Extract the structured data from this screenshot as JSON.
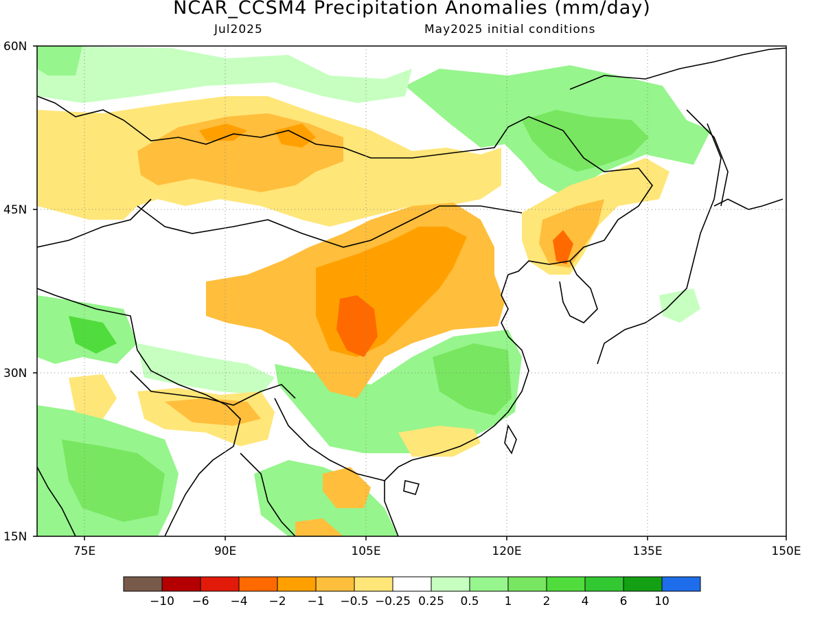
{
  "title": "NCAR_CCSM4 Precipitation Anomalies (mm/day)",
  "subtitle_left": "Jul2025",
  "subtitle_right": "May2025 initial conditions",
  "lat_labels": [
    "60N",
    "45N",
    "30N",
    "15N"
  ],
  "lon_labels": [
    "75E",
    "90E",
    "105E",
    "120E",
    "135E",
    "150E"
  ],
  "colorbar": {
    "colors": [
      "#785a4b",
      "#b40000",
      "#e11a0a",
      "#ff6a00",
      "#ffa000",
      "#ffbe3c",
      "#ffe678",
      "#ffffff",
      "#c6ffc0",
      "#96f58c",
      "#78e660",
      "#50dc3c",
      "#32c832",
      "#14a014",
      "#1e6eeb"
    ],
    "tick_labels": [
      "-10",
      "-6",
      "-4",
      "-2",
      "-1",
      "-0.5",
      "-0.25",
      "0.25",
      "0.5",
      "1",
      "2",
      "4",
      "6",
      "10"
    ]
  }
}
